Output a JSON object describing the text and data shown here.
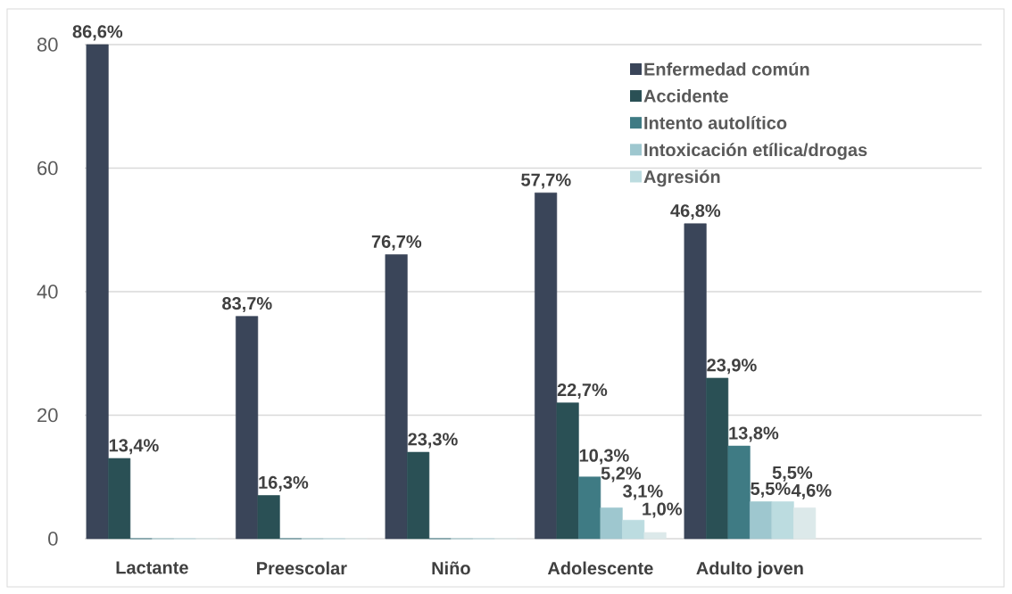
{
  "chart_data": {
    "type": "bar",
    "categories": [
      "Lactante",
      "Preescolar",
      "Niño",
      "Adolescente",
      "Adulto joven"
    ],
    "series": [
      {
        "name": "Enfermedad común",
        "color": "#3a4559",
        "values": [
          80,
          36,
          46,
          56,
          51
        ]
      },
      {
        "name": "Accidente",
        "color": "#2a5055",
        "values": [
          13,
          7,
          14,
          22,
          26
        ]
      },
      {
        "name": "Intento autolítico",
        "color": "#3f7b84",
        "values": [
          0,
          0,
          0,
          10,
          15
        ]
      },
      {
        "name": "Intoxicación etílica/drogas",
        "color": "#9ec7cf",
        "values": [
          0,
          0,
          0,
          5,
          6
        ]
      },
      {
        "name": "Agresión",
        "color": "#bcdce0",
        "values": [
          0,
          0,
          0,
          3,
          6
        ]
      },
      {
        "color": "#dce9ea",
        "values": [
          0,
          0,
          0,
          1,
          5
        ]
      }
    ],
    "annotations": [
      "86,6%",
      "13,4%",
      "83,7%",
      "16,3%",
      "76,7%",
      "23,3%",
      "57,7%",
      "22,7%",
      "10,3%",
      "5,2%",
      "3,1%",
      "1,0%",
      "46,8%",
      "23,9%",
      "13,8%",
      "5,5%",
      "5,5%",
      "4,6%"
    ],
    "ylim": [
      0,
      80
    ],
    "yticks": [
      0,
      20,
      40,
      60,
      80
    ],
    "grid": "y",
    "legend": "top right"
  }
}
